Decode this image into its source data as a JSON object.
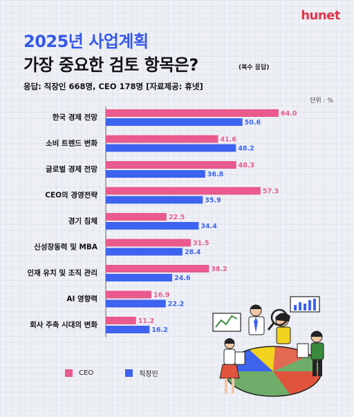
{
  "brand": "hunet",
  "title_line1": "2025년 사업계획",
  "title_line2": "가장 중요한 검토 항목은?",
  "title_note": "(복수 응답)",
  "subtitle": "응답: 직장인 668명, CEO 178명 [자료제공: 휴넷]",
  "unit": "단위 : %",
  "colors": {
    "ceo": "#ea5a8c",
    "employee": "#3d63ef",
    "title_accent": "#3558e8",
    "brand": "#e3334a"
  },
  "chart_data": {
    "type": "bar",
    "orientation": "horizontal",
    "categories": [
      "한국 경제 전망",
      "소비 트렌드 변화",
      "글로벌 경제 전망",
      "CEO의 경영전략",
      "경기 침체",
      "신성장동력 및 MBA",
      "인재 유치 및 조직 관리",
      "AI 영향력",
      "회사 주축 시대의 변화"
    ],
    "series": [
      {
        "name": "CEO",
        "color": "#ea5a8c",
        "values": [
          64.0,
          41.6,
          48.3,
          57.3,
          22.5,
          31.5,
          38.2,
          16.9,
          11.2
        ],
        "labels": [
          "64.0",
          "41.6",
          "48.3",
          "57.3",
          "22.5",
          "31.5",
          "38.2",
          "16.9",
          "11.2"
        ]
      },
      {
        "name": "직장인",
        "color": "#3d63ef",
        "values": [
          50.6,
          48.2,
          36.8,
          35.9,
          34.4,
          28.4,
          24.6,
          22.2,
          16.2
        ],
        "labels": [
          "50.6",
          "48.2",
          "36.8",
          "35.9",
          "34.4",
          "28.4",
          "24.6",
          "22.2",
          "16.2"
        ]
      }
    ],
    "xlim": [
      0,
      70
    ],
    "grid": false,
    "legend": "bottom-left"
  },
  "legend": {
    "ceo": "CEO",
    "employee": "직장인"
  }
}
